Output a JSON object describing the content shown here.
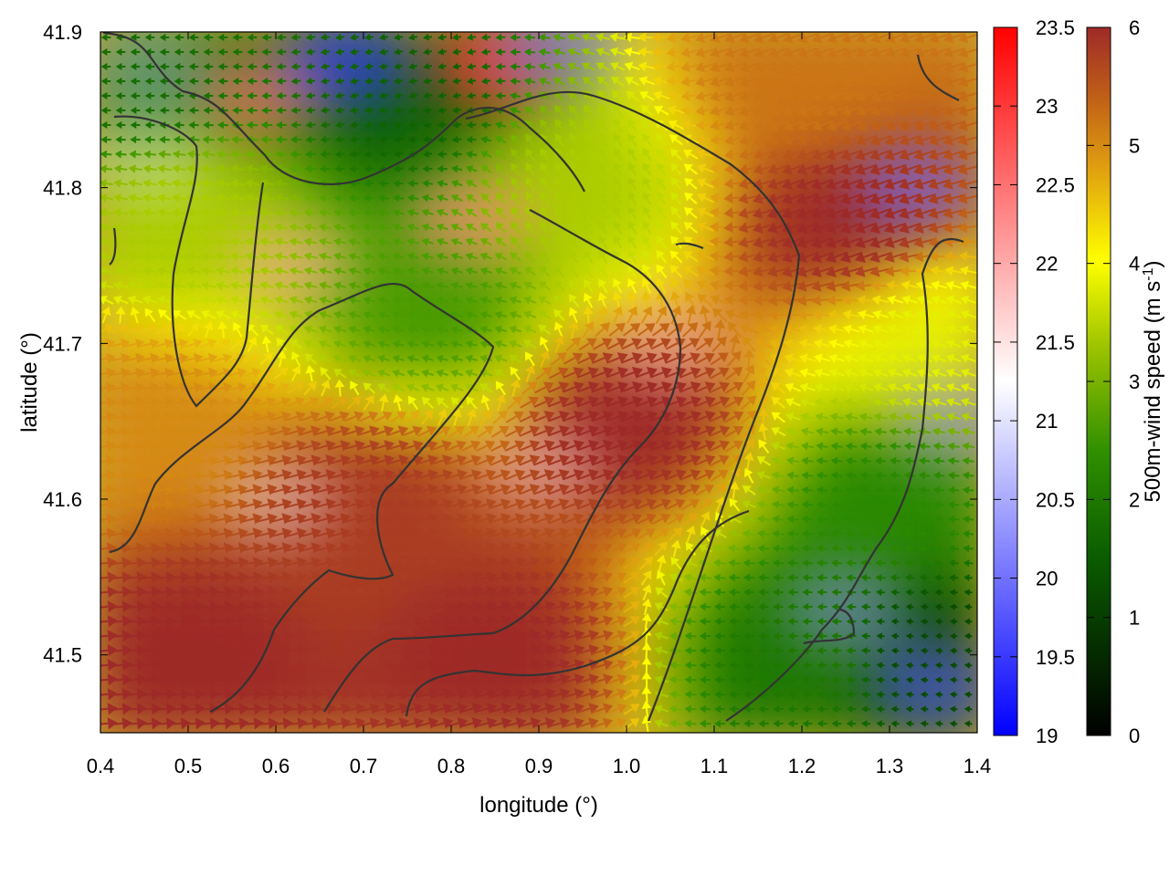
{
  "chart_data": {
    "type": "heatmap",
    "title": "",
    "xlabel": "longitude (°)",
    "ylabel": "latitude (°)",
    "xlim": [
      0.4,
      1.4
    ],
    "ylim": [
      41.45,
      41.9
    ],
    "x_ticks": [
      "0.4",
      "0.5",
      "0.6",
      "0.7",
      "0.8",
      "0.9",
      "1.0",
      "1.1",
      "1.2",
      "1.3",
      "1.4"
    ],
    "y_ticks": [
      "41.5",
      "41.6",
      "41.7",
      "41.8",
      "41.9"
    ],
    "grid": false,
    "legend": "none",
    "temperature_colorbar": {
      "range": [
        19,
        23.5
      ],
      "ticks": [
        "19",
        "19.5",
        "20",
        "20.5",
        "21",
        "21.5",
        "22",
        "22.5",
        "23",
        "23.5"
      ],
      "colors": [
        "#0000ff",
        "#ffffff",
        "#ff0000"
      ]
    },
    "wind_colorbar": {
      "label_main": "500m-wind speed (m s",
      "label_exp": "-1",
      "label_close": ")",
      "range": [
        0,
        6
      ],
      "ticks": [
        "0",
        "1",
        "2",
        "3",
        "4",
        "5",
        "6"
      ],
      "colors": [
        "#000000",
        "#0a5c00",
        "#2f8f00",
        "#9ec400",
        "#ffff00",
        "#e0a010",
        "#c06018",
        "#9e2a28"
      ]
    },
    "temperature_field": [
      {
        "lon": 0.45,
        "lat": 41.88,
        "value": 20.8
      },
      {
        "lon": 0.58,
        "lat": 41.86,
        "value": 22.5
      },
      {
        "lon": 0.68,
        "lat": 41.88,
        "value": 19.5
      },
      {
        "lon": 0.85,
        "lat": 41.88,
        "value": 23.0
      },
      {
        "lon": 0.93,
        "lat": 41.89,
        "value": 20.0
      },
      {
        "lon": 0.82,
        "lat": 41.78,
        "value": 22.3
      },
      {
        "lon": 0.62,
        "lat": 41.75,
        "value": 22.0
      },
      {
        "lon": 0.45,
        "lat": 41.82,
        "value": 21.2
      },
      {
        "lon": 1.33,
        "lat": 41.8,
        "value": 20.0
      },
      {
        "lon": 1.37,
        "lat": 41.65,
        "value": 20.2
      },
      {
        "lon": 1.25,
        "lat": 41.53,
        "value": 20.3
      },
      {
        "lon": 1.35,
        "lat": 41.48,
        "value": 19.8
      },
      {
        "lon": 0.9,
        "lat": 41.62,
        "value": 21.6
      },
      {
        "lon": 0.6,
        "lat": 41.6,
        "value": 21.3
      },
      {
        "lon": 1.05,
        "lat": 41.7,
        "value": 21.8
      }
    ],
    "wind_field": [
      {
        "lon": 0.45,
        "lat": 41.87,
        "speed": 1.8,
        "dir_deg": 180
      },
      {
        "lon": 0.75,
        "lat": 41.86,
        "speed": 1.6,
        "dir_deg": 190
      },
      {
        "lon": 1.2,
        "lat": 41.87,
        "speed": 5.2,
        "dir_deg": 200
      },
      {
        "lon": 0.5,
        "lat": 41.78,
        "speed": 3.4,
        "dir_deg": 170
      },
      {
        "lon": 0.78,
        "lat": 41.72,
        "speed": 2.6,
        "dir_deg": 165
      },
      {
        "lon": 0.95,
        "lat": 41.8,
        "speed": 3.4,
        "dir_deg": 120
      },
      {
        "lon": 1.25,
        "lat": 41.78,
        "speed": 6.0,
        "dir_deg": 200
      },
      {
        "lon": 1.35,
        "lat": 41.7,
        "speed": 3.8,
        "dir_deg": 160
      },
      {
        "lon": 0.45,
        "lat": 41.65,
        "speed": 5.0,
        "dir_deg": 10
      },
      {
        "lon": 0.7,
        "lat": 41.6,
        "speed": 5.8,
        "dir_deg": 15
      },
      {
        "lon": 1.0,
        "lat": 41.65,
        "speed": 6.0,
        "dir_deg": 20
      },
      {
        "lon": 1.3,
        "lat": 41.6,
        "speed": 2.3,
        "dir_deg": 175
      },
      {
        "lon": 0.5,
        "lat": 41.5,
        "speed": 6.0,
        "dir_deg": 5
      },
      {
        "lon": 0.85,
        "lat": 41.5,
        "speed": 6.0,
        "dir_deg": 15
      },
      {
        "lon": 1.2,
        "lat": 41.5,
        "speed": 2.0,
        "dir_deg": 180
      },
      {
        "lon": 1.35,
        "lat": 41.5,
        "speed": 1.2,
        "dir_deg": 175
      }
    ]
  }
}
